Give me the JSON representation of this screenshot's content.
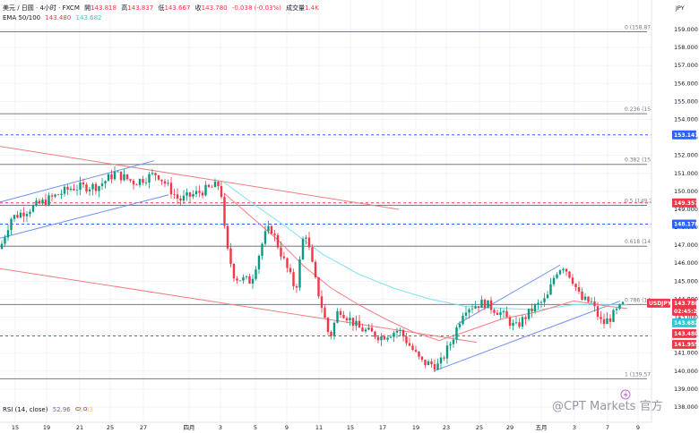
{
  "header": {
    "symbol": "美元 / 日圆 · 4小时 · FXCM",
    "open_label": "開",
    "open": "143.818",
    "high_label": "高",
    "high": "143.837",
    "low_label": "低",
    "low": "143.667",
    "close_label": "收",
    "close": "143.780",
    "change": "-0.038 (-0.03%)",
    "volume_label": "成交量",
    "volume": "1.4K",
    "ema_label": "EMA 50/100",
    "ema50": "143.480",
    "ema100": "143.682"
  },
  "currency": "JPY",
  "rsi": {
    "label": "RSI (14, close)",
    "v1": "52.96",
    "v2": "45.83"
  },
  "watermark": "@CPT Markets 官方",
  "colors": {
    "up": "#089981",
    "down": "#f23645",
    "blue": "#2962ff",
    "ema50": "#f77c80",
    "ema100": "#7ee0ee",
    "channel": "#6f8ff7",
    "trend": "#f27e7e"
  },
  "chart_data": {
    "type": "candlestick",
    "title": "",
    "ylim": [
      137.2,
      160.0
    ],
    "y_ticks": [
      "159.000",
      "158.000",
      "157.000",
      "156.000",
      "155.000",
      "154.000",
      "153.000",
      "152.000",
      "151.000",
      "150.000",
      "149.000",
      "148.000",
      "147.000",
      "146.000",
      "145.000",
      "144.000",
      "143.000",
      "142.000",
      "141.000",
      "140.000",
      "139.000",
      "138.000"
    ],
    "x_ticks": [
      "15",
      "19",
      "21",
      "25",
      "27",
      "四月",
      "3",
      "5",
      "9",
      "11",
      "15",
      "17",
      "19",
      "23",
      "25",
      "29",
      "五月",
      "3",
      "7",
      "9"
    ],
    "fib_levels": [
      {
        "label": "0 (158.874)",
        "value": 158.874
      },
      {
        "label": "0.236 (154.319)",
        "value": 154.319
      },
      {
        "label": "0.382 (151.501)",
        "value": 151.501
      },
      {
        "label": "0.5 (149.224)",
        "value": 149.224
      },
      {
        "label": "0.618 (146.946)",
        "value": 146.946
      },
      {
        "label": "0.786 (143.705)",
        "value": 143.705
      },
      {
        "label": "1 (139.573)",
        "value": 139.573
      }
    ],
    "h_lines": [
      {
        "value": 153.141,
        "label": "153.141",
        "color": "#2962ff",
        "dashed": true
      },
      {
        "value": 149.357,
        "label": "149.357",
        "color": "#f23645",
        "dashed": true
      },
      {
        "value": 148.178,
        "label": "148.178",
        "color": "#2962ff",
        "dashed": true
      },
      {
        "value": 141.955,
        "label": "141.955",
        "color": "#f23645",
        "dashed": true
      }
    ],
    "price_tags": [
      {
        "value": 143.78,
        "label": "143.780",
        "color": "#f23645"
      },
      {
        "value": 143.68,
        "label": "143.682",
        "color": "#2fc6dd"
      },
      {
        "value": 143.48,
        "label": "143.480",
        "color": "#f23645"
      },
      {
        "value": 141.955,
        "label": "141.955",
        "color": "#f23645"
      }
    ],
    "symbol_tag": "USDJPY",
    "countdown": "02:45:29",
    "key_points": [
      [
        0,
        146.8
      ],
      [
        12,
        148.5
      ],
      [
        40,
        149.2
      ],
      [
        80,
        150.2
      ],
      [
        110,
        150.3
      ],
      [
        128,
        151.0
      ],
      [
        150,
        150.5
      ],
      [
        175,
        151.0
      ],
      [
        200,
        149.5
      ],
      [
        225,
        150.0
      ],
      [
        246,
        150.4
      ],
      [
        252,
        147.0
      ],
      [
        262,
        145.2
      ],
      [
        280,
        145.0
      ],
      [
        295,
        147.5
      ],
      [
        302,
        148.0
      ],
      [
        318,
        146.0
      ],
      [
        330,
        144.5
      ],
      [
        340,
        148.0
      ],
      [
        352,
        145.0
      ],
      [
        368,
        141.8
      ],
      [
        378,
        143.5
      ],
      [
        400,
        142.4
      ],
      [
        425,
        141.9
      ],
      [
        445,
        142.3
      ],
      [
        470,
        140.5
      ],
      [
        490,
        140.3
      ],
      [
        505,
        141.8
      ],
      [
        518,
        143.5
      ],
      [
        540,
        143.8
      ],
      [
        560,
        143.2
      ],
      [
        575,
        142.4
      ],
      [
        595,
        143.5
      ],
      [
        610,
        144.0
      ],
      [
        620,
        145.5
      ],
      [
        628,
        145.9
      ],
      [
        638,
        145.2
      ],
      [
        648,
        144.0
      ],
      [
        660,
        143.8
      ],
      [
        672,
        142.6
      ],
      [
        682,
        143.0
      ],
      [
        697,
        143.78
      ]
    ],
    "ema50_points": [
      [
        250,
        149.9
      ],
      [
        280,
        148.6
      ],
      [
        310,
        147.3
      ],
      [
        340,
        145.8
      ],
      [
        370,
        144.6
      ],
      [
        400,
        143.7
      ],
      [
        430,
        142.9
      ],
      [
        460,
        142.2
      ],
      [
        490,
        141.7
      ],
      [
        520,
        142.2
      ],
      [
        560,
        142.9
      ],
      [
        600,
        143.3
      ],
      [
        640,
        143.9
      ],
      [
        680,
        143.6
      ],
      [
        700,
        143.48
      ]
    ],
    "ema100_points": [
      [
        250,
        150.5
      ],
      [
        280,
        149.4
      ],
      [
        320,
        148.0
      ],
      [
        360,
        146.5
      ],
      [
        400,
        145.4
      ],
      [
        440,
        144.6
      ],
      [
        480,
        144.0
      ],
      [
        520,
        143.6
      ],
      [
        560,
        143.5
      ],
      [
        600,
        143.4
      ],
      [
        640,
        143.7
      ],
      [
        700,
        143.68
      ]
    ],
    "trend_lines": [
      {
        "from": [
          0,
          152.5
        ],
        "to": [
          445,
          149.0
        ],
        "color": "#f27e7e"
      },
      {
        "from": [
          0,
          145.7
        ],
        "to": [
          532,
          141.6
        ],
        "color": "#f27e7e"
      },
      {
        "from": [
          0,
          149.4
        ],
        "to": [
          172,
          151.7
        ],
        "color": "#6f8ff7"
      },
      {
        "from": [
          0,
          147.4
        ],
        "to": [
          188,
          149.8
        ],
        "color": "#6f8ff7"
      },
      {
        "from": [
          484,
          140.0
        ],
        "to": [
          692,
          143.9
        ],
        "color": "#6f8ff7"
      },
      {
        "from": [
          510,
          142.6
        ],
        "to": [
          625,
          145.9
        ],
        "color": "#6f8ff7"
      }
    ]
  }
}
